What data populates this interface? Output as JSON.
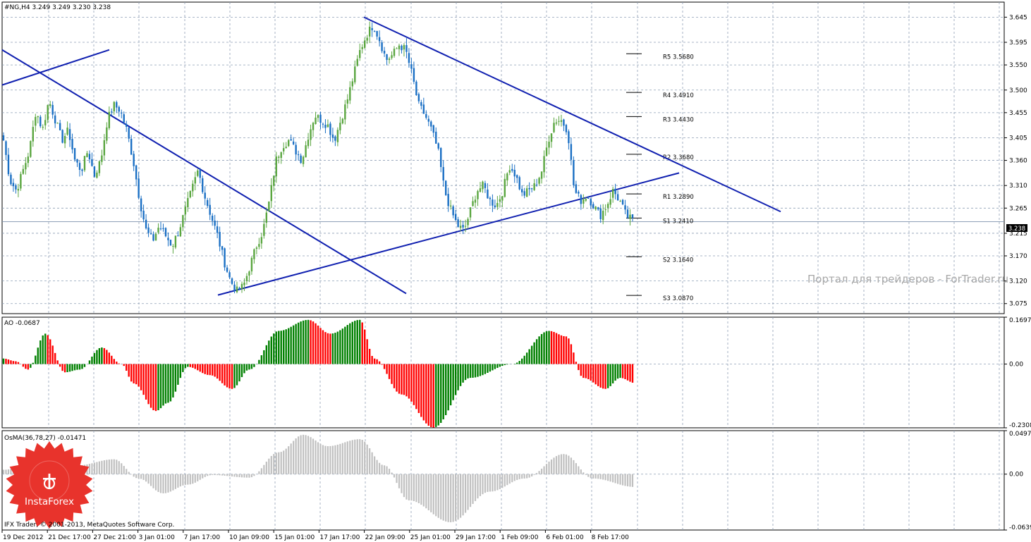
{
  "chart_data": [
    {
      "type": "candlestick",
      "panel": "price",
      "title": "#NG,H4  3.249 3.249 3.230 3.238",
      "ylim": [
        3.055,
        3.675
      ],
      "y_ticks": [
        "3.645",
        "3.595",
        "3.550",
        "3.500",
        "3.455",
        "3.405",
        "3.360",
        "3.310",
        "3.265",
        "3.215",
        "3.170",
        "3.120",
        "3.075"
      ],
      "current_price": "3.238",
      "x_ticks": [
        "19 Dec 2012",
        "21 Dec 17:00",
        "27 Dec 21:00",
        "3 Jan 01:00",
        "7 Jan 17:00",
        "10 Jan 09:00",
        "15 Jan 01:00",
        "17 Jan 17:00",
        "22 Jan 09:00",
        "25 Jan 01:00",
        "29 Jan 17:00",
        "1 Feb 09:00",
        "6 Feb 01:00",
        "8 Feb 17:00"
      ],
      "close_path": [
        3.4,
        3.32,
        3.3,
        3.34,
        3.38,
        3.46,
        3.42,
        3.48,
        3.44,
        3.4,
        3.42,
        3.36,
        3.34,
        3.38,
        3.33,
        3.36,
        3.44,
        3.47,
        3.46,
        3.42,
        3.36,
        3.28,
        3.22,
        3.2,
        3.23,
        3.21,
        3.19,
        3.22,
        3.26,
        3.3,
        3.34,
        3.29,
        3.25,
        3.21,
        3.16,
        3.12,
        3.1,
        3.11,
        3.15,
        3.19,
        3.22,
        3.28,
        3.36,
        3.39,
        3.4,
        3.38,
        3.36,
        3.41,
        3.45,
        3.44,
        3.43,
        3.4,
        3.44,
        3.48,
        3.53,
        3.58,
        3.61,
        3.63,
        3.6,
        3.56,
        3.57,
        3.59,
        3.58,
        3.53,
        3.47,
        3.45,
        3.42,
        3.38,
        3.3,
        3.26,
        3.23,
        3.22,
        3.26,
        3.3,
        3.31,
        3.28,
        3.27,
        3.3,
        3.35,
        3.33,
        3.29,
        3.3,
        3.31,
        3.34,
        3.4,
        3.44,
        3.44,
        3.42,
        3.3,
        3.28,
        3.29,
        3.27,
        3.25,
        3.27,
        3.3,
        3.28,
        3.25,
        3.24
      ],
      "pivots": [
        {
          "label": "R5",
          "value": "3.5680",
          "level": 3.568
        },
        {
          "label": "R4",
          "value": "3.4910",
          "level": 3.491
        },
        {
          "label": "R3",
          "value": "3.4430",
          "level": 3.443
        },
        {
          "label": "R2",
          "value": "3.3680",
          "level": 3.368
        },
        {
          "label": "R1",
          "value": "3.2890",
          "level": 3.289
        },
        {
          "label": "S1",
          "value": "3.2410",
          "level": 3.241
        },
        {
          "label": "S2",
          "value": "3.1640",
          "level": 3.164
        },
        {
          "label": "S3",
          "value": "3.0870",
          "level": 3.087
        }
      ],
      "watermark": "Портал для трейдеров - ForTrader.ru",
      "colors": {
        "bull": "#5aa640",
        "bear": "#1a6fc4",
        "trendline": "#1020b0",
        "grid": "#8e9fb5"
      }
    },
    {
      "type": "bar",
      "panel": "AO",
      "title": "AO -0.0687",
      "ylim": [
        -0.2308,
        0.1697
      ],
      "y_ticks": [
        "0.1697",
        "0.00",
        "-0.2308"
      ],
      "key_values": [
        [
          0,
          0.02
        ],
        [
          5,
          0.01
        ],
        [
          10,
          -0.02
        ],
        [
          17,
          0.11
        ],
        [
          25,
          -0.03
        ],
        [
          31,
          -0.02
        ],
        [
          40,
          0.06
        ],
        [
          48,
          0.0
        ],
        [
          53,
          -0.07
        ],
        [
          62,
          -0.17
        ],
        [
          67,
          -0.14
        ],
        [
          75,
          -0.01
        ],
        [
          84,
          -0.04
        ],
        [
          93,
          -0.09
        ],
        [
          100,
          -0.02
        ],
        [
          112,
          0.12
        ],
        [
          124,
          0.16
        ],
        [
          133,
          0.11
        ],
        [
          145,
          0.16
        ],
        [
          151,
          0.02
        ],
        [
          162,
          -0.11
        ],
        [
          175,
          -0.23
        ],
        [
          190,
          -0.05
        ],
        [
          207,
          0.0
        ],
        [
          222,
          0.12
        ],
        [
          229,
          0.1
        ],
        [
          236,
          -0.05
        ],
        [
          245,
          -0.09
        ],
        [
          251,
          -0.05
        ],
        [
          257,
          -0.0687
        ]
      ],
      "colors": {
        "up": "#008000",
        "down": "#ff0000"
      }
    },
    {
      "type": "bar",
      "panel": "OsMA",
      "title": "OsMA(36,78,27) -0.01471",
      "ylim": [
        -0.0639,
        0.04975
      ],
      "y_ticks": [
        "0.04975",
        "0.00",
        "-0.0639"
      ],
      "key_values": [
        [
          0,
          0.005
        ],
        [
          12,
          0.012
        ],
        [
          20,
          0.028
        ],
        [
          30,
          0.01
        ],
        [
          45,
          0.017
        ],
        [
          55,
          -0.005
        ],
        [
          65,
          -0.022
        ],
        [
          75,
          -0.012
        ],
        [
          85,
          -0.001
        ],
        [
          100,
          -0.004
        ],
        [
          112,
          0.025
        ],
        [
          122,
          0.045
        ],
        [
          132,
          0.032
        ],
        [
          145,
          0.04
        ],
        [
          155,
          0.01
        ],
        [
          165,
          -0.03
        ],
        [
          182,
          -0.055
        ],
        [
          198,
          -0.02
        ],
        [
          212,
          -0.005
        ],
        [
          228,
          0.023
        ],
        [
          240,
          -0.005
        ],
        [
          257,
          -0.01471
        ]
      ],
      "colors": {
        "bars": "#c0c0c0"
      }
    }
  ],
  "footer": "IFX Trader, © 2001-2013, MetaQuotes Software Corp.",
  "logo": {
    "text": "InstaForex",
    "color": "#e8332c"
  }
}
